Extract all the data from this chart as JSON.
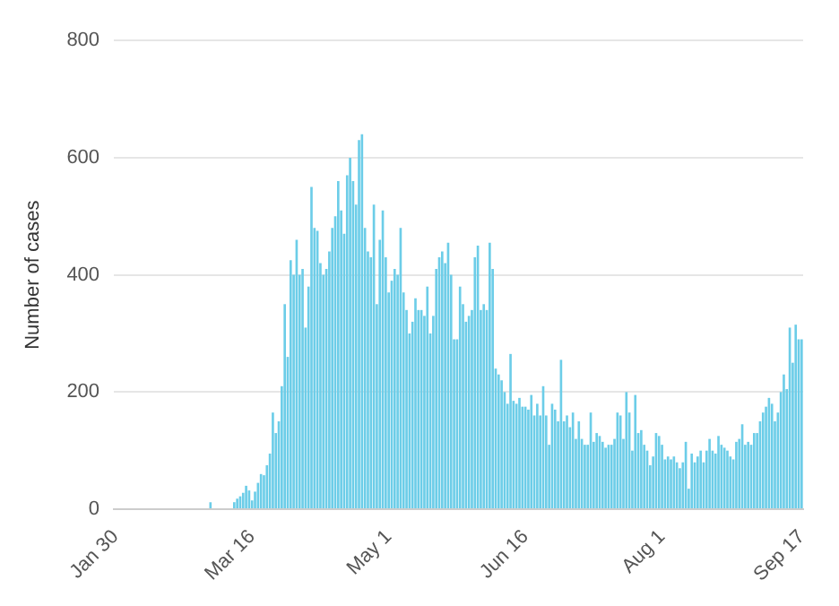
{
  "chart_data": {
    "type": "bar",
    "ylabel": "Number of cases",
    "color": "#6ccde8",
    "categories": [
      "Jan 30",
      null,
      null,
      null,
      null,
      null,
      null,
      null,
      null,
      null,
      null,
      null,
      null,
      null,
      null,
      null,
      null,
      null,
      null,
      null,
      null,
      null,
      null,
      null,
      null,
      null,
      null,
      null,
      null,
      null,
      null,
      null,
      null,
      null,
      null,
      null,
      null,
      null,
      null,
      null,
      null,
      null,
      null,
      null,
      null,
      null,
      "Mar 16",
      null,
      null,
      null,
      null,
      null,
      null,
      null,
      null,
      null,
      null,
      null,
      null,
      null,
      null,
      null,
      null,
      null,
      null,
      null,
      null,
      null,
      null,
      null,
      null,
      null,
      null,
      null,
      null,
      null,
      null,
      null,
      null,
      null,
      null,
      null,
      null,
      null,
      null,
      null,
      null,
      null,
      null,
      null,
      null,
      null,
      "May 1",
      null,
      null,
      null,
      null,
      null,
      null,
      null,
      null,
      null,
      null,
      null,
      null,
      null,
      null,
      null,
      null,
      null,
      null,
      null,
      null,
      null,
      null,
      null,
      null,
      null,
      null,
      null,
      null,
      null,
      null,
      null,
      null,
      null,
      null,
      null,
      null,
      null,
      null,
      null,
      null,
      null,
      null,
      null,
      null,
      null,
      "Jun 16",
      null,
      null,
      null,
      null,
      null,
      null,
      null,
      null,
      null,
      null,
      null,
      null,
      null,
      null,
      null,
      null,
      null,
      null,
      null,
      null,
      null,
      null,
      null,
      null,
      null,
      null,
      null,
      null,
      null,
      null,
      null,
      null,
      null,
      null,
      null,
      null,
      null,
      null,
      null,
      null,
      null,
      null,
      null,
      null,
      null,
      "Aug 1",
      null,
      null,
      null,
      null,
      null,
      null,
      null,
      null,
      null,
      null,
      null,
      null,
      null,
      null,
      null,
      null,
      null,
      null,
      null,
      null,
      null,
      null,
      null,
      null,
      null,
      null,
      null,
      null,
      null,
      null,
      null,
      null,
      null,
      null,
      null,
      null,
      null,
      null,
      null,
      null,
      null,
      null,
      null,
      null,
      null,
      null,
      "Sep 17"
    ],
    "values": [
      0,
      0,
      0,
      0,
      0,
      0,
      0,
      0,
      0,
      0,
      0,
      0,
      0,
      0,
      0,
      0,
      0,
      0,
      0,
      0,
      0,
      0,
      0,
      0,
      0,
      0,
      0,
      0,
      0,
      0,
      0,
      0,
      12,
      0,
      0,
      0,
      0,
      0,
      0,
      0,
      12,
      18,
      22,
      28,
      40,
      32,
      15,
      30,
      45,
      60,
      58,
      75,
      95,
      165,
      130,
      150,
      210,
      350,
      260,
      425,
      400,
      460,
      400,
      410,
      310,
      380,
      550,
      480,
      475,
      420,
      400,
      410,
      440,
      480,
      500,
      560,
      510,
      470,
      570,
      600,
      560,
      520,
      630,
      640,
      480,
      440,
      430,
      520,
      350,
      460,
      510,
      430,
      370,
      390,
      410,
      400,
      480,
      370,
      340,
      300,
      320,
      360,
      340,
      340,
      330,
      380,
      300,
      330,
      410,
      430,
      440,
      420,
      455,
      400,
      290,
      290,
      380,
      350,
      320,
      330,
      340,
      430,
      450,
      340,
      350,
      340,
      455,
      410,
      240,
      230,
      220,
      200,
      180,
      265,
      185,
      180,
      190,
      175,
      175,
      170,
      195,
      160,
      180,
      160,
      210,
      160,
      110,
      180,
      170,
      150,
      255,
      150,
      160,
      140,
      165,
      120,
      150,
      120,
      110,
      110,
      165,
      115,
      130,
      125,
      115,
      105,
      110,
      110,
      120,
      165,
      160,
      120,
      200,
      165,
      100,
      195,
      130,
      135,
      110,
      100,
      75,
      90,
      130,
      125,
      110,
      85,
      90,
      85,
      90,
      80,
      70,
      80,
      115,
      35,
      95,
      80,
      90,
      100,
      80,
      100,
      120,
      100,
      95,
      125,
      110,
      105,
      100,
      90,
      85,
      115,
      120,
      145,
      110,
      115,
      110,
      130,
      130,
      150,
      165,
      175,
      190,
      180,
      150,
      165,
      200,
      230,
      205,
      310,
      250,
      315,
      290,
      290
    ],
    "ylim": [
      0,
      800
    ],
    "yticks": [
      0,
      200,
      400,
      600,
      800
    ],
    "grid": "y"
  }
}
